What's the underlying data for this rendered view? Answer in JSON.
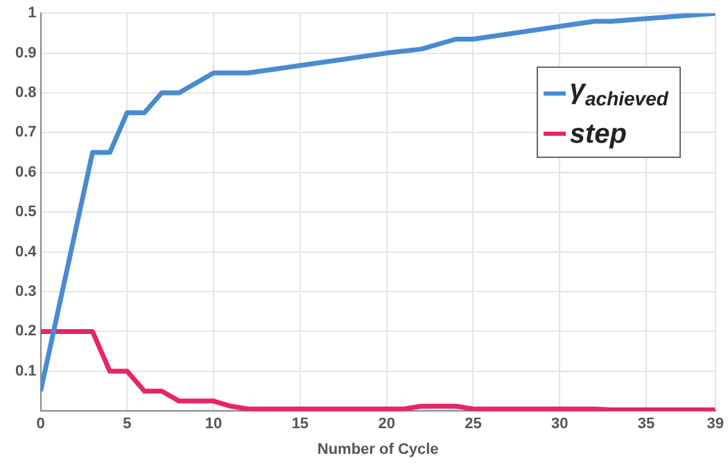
{
  "chart_data": {
    "type": "line",
    "xlabel": "Number of Cycle",
    "xlim": [
      0,
      39
    ],
    "xticks": [
      0,
      5,
      10,
      15,
      20,
      25,
      30,
      35,
      39
    ],
    "ylim": [
      0,
      1
    ],
    "yticks": [
      {
        "value": 0,
        "label": null
      },
      0.1,
      0.2,
      0.3,
      0.4,
      0.5,
      0.6,
      0.7,
      0.8,
      0.9,
      1
    ],
    "grid": true,
    "legend": "top right",
    "marker": "none",
    "line_style": "solid",
    "series": [
      {
        "name": "γ$_{achieved}$",
        "color": "#4a8ad0",
        "x": [
          0,
          3,
          4,
          5,
          6,
          7,
          8,
          10,
          12,
          20,
          22,
          24,
          25,
          32,
          33,
          39
        ],
        "values": [
          0.05,
          0.65,
          0.65,
          0.75,
          0.75,
          0.8,
          0.8,
          0.85,
          0.85,
          0.9,
          0.91,
          0.935,
          0.935,
          0.98,
          0.98,
          1.0
        ]
      },
      {
        "name": "step",
        "color": "#e8246a",
        "x": [
          0,
          3,
          4,
          5,
          6,
          7,
          8,
          10,
          11,
          12,
          21,
          22,
          24,
          25,
          32,
          33,
          39
        ],
        "values": [
          0.2,
          0.2,
          0.1,
          0.1,
          0.05,
          0.05,
          0.025,
          0.025,
          0.012,
          0.005,
          0.005,
          0.012,
          0.012,
          0.005,
          0.005,
          0.003,
          0.003
        ]
      }
    ]
  }
}
